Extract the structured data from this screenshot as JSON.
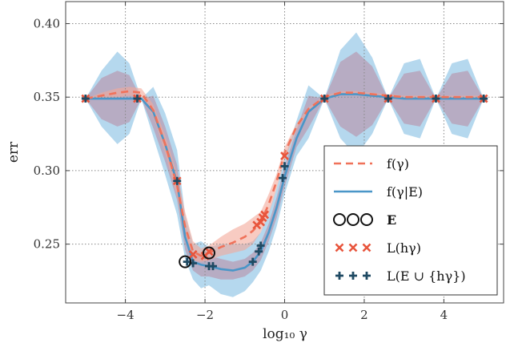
{
  "chart_data": {
    "type": "line",
    "xlabel": "log₁₀ γ",
    "ylabel": "err",
    "xlim": [
      -5.5,
      5.5
    ],
    "ylim": [
      0.21,
      0.415
    ],
    "grid": true,
    "legend_placement": "lower-right",
    "x_ticks": [
      {
        "value": -4,
        "label": "−4"
      },
      {
        "value": -2,
        "label": "−2"
      },
      {
        "value": 0,
        "label": "0"
      },
      {
        "value": 2,
        "label": "2"
      },
      {
        "value": 4,
        "label": "4"
      }
    ],
    "y_ticks": [
      {
        "value": 0.25,
        "label": "0.25"
      },
      {
        "value": 0.3,
        "label": "0.30"
      },
      {
        "value": 0.35,
        "label": "0.35"
      },
      {
        "value": 0.4,
        "label": "0.40"
      }
    ],
    "colors": {
      "f_line": "#f0725a",
      "f_band": "#f4a89a",
      "fE_line": "#4a96c8",
      "fE_band_outer": "#9ccbe8",
      "fE_band_inner": "#b89ab0",
      "L_marker": "#e8553c",
      "LE_marker": "#1f4a63",
      "E_marker": "#111111"
    },
    "series": [
      {
        "name": "f(γ)",
        "style": "dashed",
        "x": [
          -5.0,
          -4.6,
          -4.2,
          -3.9,
          -3.6,
          -3.3,
          -3.0,
          -2.7,
          -2.5,
          -2.3,
          -2.1,
          -1.9,
          -1.6,
          -1.3,
          -1.0,
          -0.8,
          -0.6,
          -0.4,
          -0.2,
          0.0,
          0.3,
          0.6,
          1.0,
          1.4,
          1.8,
          2.2,
          2.6,
          3.0,
          3.4,
          3.8,
          4.2,
          4.6,
          5.0
        ],
        "y": [
          0.349,
          0.351,
          0.353,
          0.354,
          0.353,
          0.341,
          0.318,
          0.29,
          0.262,
          0.245,
          0.242,
          0.244,
          0.248,
          0.251,
          0.255,
          0.259,
          0.265,
          0.277,
          0.293,
          0.312,
          0.33,
          0.342,
          0.35,
          0.353,
          0.353,
          0.352,
          0.351,
          0.35,
          0.35,
          0.35,
          0.35,
          0.35,
          0.35
        ],
        "band_lower": [
          0.349,
          0.349,
          0.35,
          0.351,
          0.35,
          0.337,
          0.312,
          0.282,
          0.252,
          0.239,
          0.238,
          0.239,
          0.242,
          0.244,
          0.246,
          0.25,
          0.258,
          0.27,
          0.288,
          0.307,
          0.328,
          0.341,
          0.349,
          0.352,
          0.352,
          0.351,
          0.35,
          0.349,
          0.349,
          0.349,
          0.349,
          0.349,
          0.349
        ],
        "band_upper": [
          0.349,
          0.353,
          0.356,
          0.357,
          0.356,
          0.345,
          0.324,
          0.298,
          0.272,
          0.252,
          0.247,
          0.249,
          0.255,
          0.26,
          0.264,
          0.268,
          0.272,
          0.284,
          0.298,
          0.316,
          0.332,
          0.343,
          0.351,
          0.354,
          0.354,
          0.353,
          0.352,
          0.351,
          0.351,
          0.351,
          0.351,
          0.351,
          0.351
        ]
      },
      {
        "name": "f(γ|E)",
        "style": "solid",
        "x": [
          -5.0,
          -4.6,
          -4.2,
          -3.9,
          -3.6,
          -3.3,
          -3.0,
          -2.7,
          -2.5,
          -2.3,
          -2.1,
          -1.9,
          -1.6,
          -1.3,
          -1.0,
          -0.8,
          -0.6,
          -0.4,
          -0.2,
          0.0,
          0.3,
          0.6,
          1.0,
          1.4,
          1.8,
          2.2,
          2.6,
          3.0,
          3.4,
          3.8,
          4.2,
          4.6,
          5.0
        ],
        "y": [
          0.349,
          0.349,
          0.349,
          0.349,
          0.349,
          0.34,
          0.318,
          0.292,
          0.255,
          0.238,
          0.236,
          0.235,
          0.233,
          0.232,
          0.234,
          0.238,
          0.245,
          0.258,
          0.275,
          0.296,
          0.322,
          0.34,
          0.349,
          0.352,
          0.352,
          0.351,
          0.35,
          0.349,
          0.349,
          0.349,
          0.349,
          0.349,
          0.349
        ],
        "band_outer_lower": [
          0.349,
          0.33,
          0.318,
          0.325,
          0.349,
          0.323,
          0.297,
          0.27,
          0.24,
          0.226,
          0.22,
          0.222,
          0.216,
          0.214,
          0.218,
          0.224,
          0.232,
          0.245,
          0.262,
          0.284,
          0.31,
          0.322,
          0.349,
          0.322,
          0.31,
          0.325,
          0.349,
          0.325,
          0.322,
          0.349,
          0.325,
          0.322,
          0.349
        ],
        "band_outer_upper": [
          0.349,
          0.368,
          0.381,
          0.373,
          0.349,
          0.357,
          0.339,
          0.314,
          0.27,
          0.25,
          0.252,
          0.248,
          0.25,
          0.25,
          0.25,
          0.252,
          0.258,
          0.271,
          0.288,
          0.308,
          0.334,
          0.358,
          0.349,
          0.382,
          0.394,
          0.377,
          0.349,
          0.373,
          0.376,
          0.349,
          0.373,
          0.376,
          0.349
        ],
        "band_inner_lower": [
          0.349,
          0.335,
          0.33,
          0.333,
          0.349,
          0.329,
          0.306,
          0.28,
          0.246,
          0.232,
          0.228,
          0.228,
          0.226,
          0.226,
          0.228,
          0.232,
          0.239,
          0.252,
          0.268,
          0.289,
          0.316,
          0.329,
          0.349,
          0.33,
          0.323,
          0.331,
          0.349,
          0.332,
          0.33,
          0.349,
          0.332,
          0.33,
          0.349
        ],
        "band_inner_upper": [
          0.349,
          0.363,
          0.368,
          0.365,
          0.349,
          0.351,
          0.33,
          0.304,
          0.264,
          0.244,
          0.244,
          0.242,
          0.24,
          0.238,
          0.24,
          0.244,
          0.251,
          0.264,
          0.282,
          0.303,
          0.328,
          0.351,
          0.349,
          0.374,
          0.381,
          0.371,
          0.349,
          0.366,
          0.368,
          0.349,
          0.366,
          0.368,
          0.349
        ]
      }
    ],
    "markers": {
      "E": {
        "name": "E",
        "points": [
          [
            -2.5,
            0.238
          ],
          [
            -1.9,
            0.244
          ]
        ]
      },
      "L": {
        "name": "L(h_γ)",
        "points": [
          [
            -5.0,
            0.349
          ],
          [
            -3.7,
            0.349
          ],
          [
            -2.7,
            0.293
          ],
          [
            -2.3,
            0.243
          ],
          [
            -2.0,
            0.242
          ],
          [
            -1.9,
            0.245
          ],
          [
            -0.7,
            0.263
          ],
          [
            -0.6,
            0.265
          ],
          [
            -0.55,
            0.268
          ],
          [
            -0.5,
            0.27
          ],
          [
            0.0,
            0.31
          ],
          [
            1.0,
            0.349
          ],
          [
            2.6,
            0.349
          ],
          [
            3.8,
            0.349
          ],
          [
            5.0,
            0.349
          ]
        ]
      },
      "LE": {
        "name": "L(E ∪ {h_γ})",
        "points": [
          [
            -5.0,
            0.349
          ],
          [
            -3.7,
            0.349
          ],
          [
            -2.7,
            0.293
          ],
          [
            -2.45,
            0.238
          ],
          [
            -2.3,
            0.237
          ],
          [
            -1.9,
            0.235
          ],
          [
            -1.8,
            0.235
          ],
          [
            -0.8,
            0.238
          ],
          [
            -0.65,
            0.245
          ],
          [
            -0.6,
            0.249
          ],
          [
            -0.05,
            0.295
          ],
          [
            0.0,
            0.303
          ],
          [
            1.0,
            0.349
          ],
          [
            2.6,
            0.349
          ],
          [
            3.8,
            0.349
          ],
          [
            5.0,
            0.349
          ]
        ]
      }
    },
    "legend": [
      {
        "key": "f",
        "label": "f(γ)",
        "glyph": "dashed"
      },
      {
        "key": "fE",
        "label": "f(γ|E)",
        "glyph": "solid"
      },
      {
        "key": "E",
        "label": "E",
        "glyph": "circles"
      },
      {
        "key": "L",
        "label": "L(hγ)",
        "glyph": "x"
      },
      {
        "key": "LE",
        "label": "L(E ∪ {hγ})",
        "glyph": "plus"
      }
    ]
  }
}
